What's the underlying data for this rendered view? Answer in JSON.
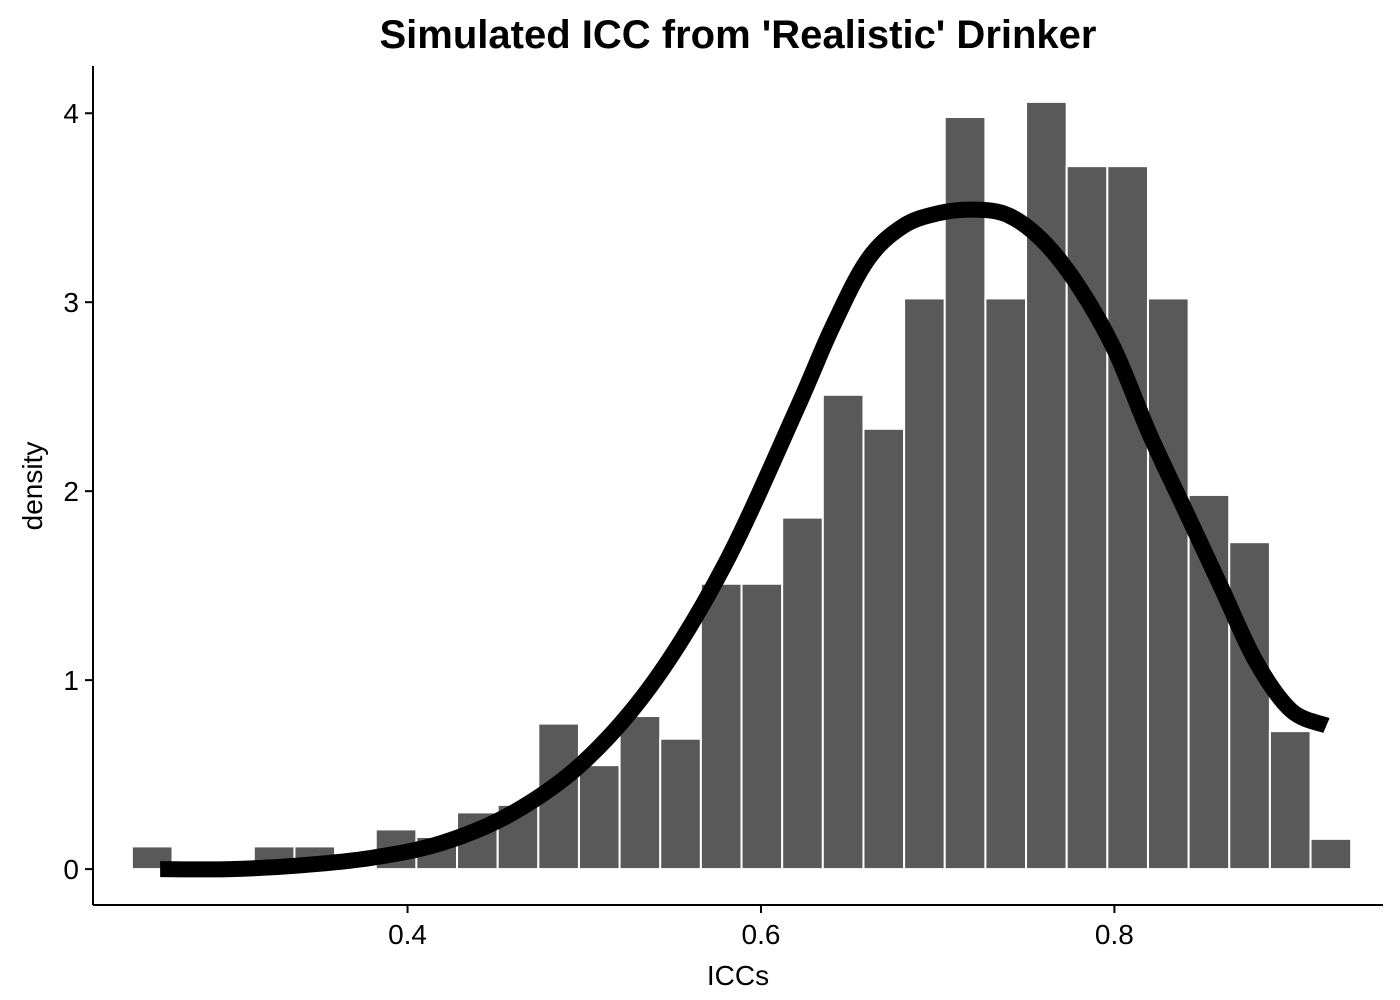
{
  "chart_data": {
    "type": "bar",
    "title": "Simulated ICC from 'Realistic' Drinker",
    "xlabel": "ICCs",
    "ylabel": "density",
    "xlim": [
      0.222,
      0.952
    ],
    "ylim": [
      -0.19,
      4.25
    ],
    "x_ticks": [
      {
        "value": 0.4,
        "label": "0.4"
      },
      {
        "value": 0.6,
        "label": "0.6"
      },
      {
        "value": 0.8,
        "label": "0.8"
      }
    ],
    "y_ticks": [
      {
        "value": 0,
        "label": "0"
      },
      {
        "value": 1,
        "label": "1"
      },
      {
        "value": 2,
        "label": "2"
      },
      {
        "value": 3,
        "label": "3"
      },
      {
        "value": 4,
        "label": "4"
      }
    ],
    "histogram": {
      "bin_width": 0.023,
      "fill": "#595959",
      "edge": "#ffffff",
      "bins": [
        {
          "center": 0.2555,
          "density": 0.12
        },
        {
          "center": 0.2785,
          "density": 0.0
        },
        {
          "center": 0.3015,
          "density": 0.0
        },
        {
          "center": 0.3245,
          "density": 0.12
        },
        {
          "center": 0.3475,
          "density": 0.12
        },
        {
          "center": 0.3705,
          "density": 0.0
        },
        {
          "center": 0.3935,
          "density": 0.21
        },
        {
          "center": 0.4165,
          "density": 0.17
        },
        {
          "center": 0.4395,
          "density": 0.3
        },
        {
          "center": 0.4625,
          "density": 0.34
        },
        {
          "center": 0.4855,
          "density": 0.77
        },
        {
          "center": 0.5085,
          "density": 0.55
        },
        {
          "center": 0.5315,
          "density": 0.81
        },
        {
          "center": 0.5545,
          "density": 0.69
        },
        {
          "center": 0.5775,
          "density": 1.51
        },
        {
          "center": 0.6005,
          "density": 1.51
        },
        {
          "center": 0.6235,
          "density": 1.86
        },
        {
          "center": 0.6465,
          "density": 2.51
        },
        {
          "center": 0.6695,
          "density": 2.33
        },
        {
          "center": 0.6925,
          "density": 3.02
        },
        {
          "center": 0.7155,
          "density": 3.98
        },
        {
          "center": 0.7385,
          "density": 3.02
        },
        {
          "center": 0.7615,
          "density": 4.06
        },
        {
          "center": 0.7845,
          "density": 3.72
        },
        {
          "center": 0.8075,
          "density": 3.72
        },
        {
          "center": 0.8305,
          "density": 3.02
        },
        {
          "center": 0.8535,
          "density": 1.98
        },
        {
          "center": 0.8765,
          "density": 1.73
        },
        {
          "center": 0.8995,
          "density": 0.73
        },
        {
          "center": 0.9225,
          "density": 0.16
        }
      ]
    },
    "density_curve": {
      "color": "#000000",
      "x": [
        0.26,
        0.3,
        0.34,
        0.38,
        0.42,
        0.46,
        0.5,
        0.54,
        0.58,
        0.62,
        0.64,
        0.66,
        0.68,
        0.7,
        0.72,
        0.74,
        0.76,
        0.78,
        0.8,
        0.82,
        0.84,
        0.86,
        0.88,
        0.9,
        0.92
      ],
      "y": [
        0.0,
        0.0,
        0.02,
        0.06,
        0.14,
        0.3,
        0.57,
        1.0,
        1.62,
        2.43,
        2.86,
        3.22,
        3.4,
        3.47,
        3.49,
        3.46,
        3.32,
        3.08,
        2.75,
        2.3,
        1.9,
        1.5,
        1.1,
        0.84,
        0.76
      ]
    },
    "grid": false,
    "legend": "none"
  }
}
